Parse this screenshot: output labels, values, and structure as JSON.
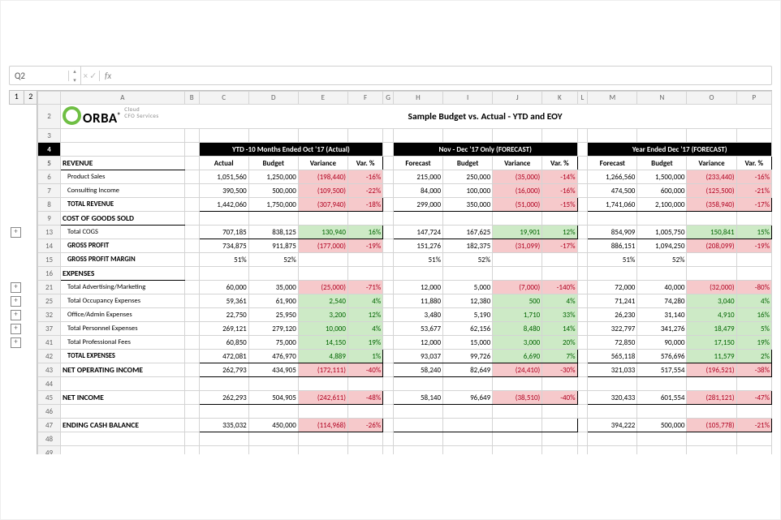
{
  "formula_bar": {
    "namebox": "Q2",
    "fx_label": "fx"
  },
  "outline_levels": [
    "1",
    "2"
  ],
  "title": "Sample Budget vs. Actual - YTD and EOY",
  "logo": {
    "text": "ORBA",
    "reg": "®",
    "sub1": "Cloud",
    "sub2": "CFO Services"
  },
  "column_letters": [
    "A",
    "B",
    "C",
    "D",
    "E",
    "F",
    "G",
    "H",
    "I",
    "J",
    "K",
    "L",
    "M",
    "N",
    "O",
    "P"
  ],
  "sections": {
    "s1": {
      "title": "YTD -10 Months Ended Oct '17 (Actual)",
      "cols": [
        "Actual",
        "Budget",
        "Variance",
        "Var. %"
      ]
    },
    "s2": {
      "title": "Nov - Dec '17 Only (FORECAST)",
      "cols": [
        "Forecast",
        "Budget",
        "Variance",
        "Var. %"
      ]
    },
    "s3": {
      "title": "Year Ended Dec '17 (FORECAST)",
      "cols": [
        "Forecast",
        "Budget",
        "Variance",
        "Var. %"
      ]
    }
  },
  "neg_color": "#f6c9cb",
  "pos_color": "#cdeac6",
  "rows": [
    {
      "rn": "2",
      "type": "logo_title"
    },
    {
      "rn": "3",
      "type": "blank"
    },
    {
      "rn": "4",
      "type": "section_hdr"
    },
    {
      "rn": "5",
      "type": "sub_hdr",
      "label": "REVENUE"
    },
    {
      "rn": "6",
      "type": "data",
      "minor": true,
      "label": "Product Sales",
      "v": [
        [
          "1,051,560",
          "1,250,000",
          "(198,440)",
          "-16%"
        ],
        [
          "215,000",
          "250,000",
          "(35,000)",
          "-14%"
        ],
        [
          "1,266,560",
          "1,500,000",
          "(233,440)",
          "-16%"
        ]
      ],
      "sgn": [
        [
          null,
          null,
          "neg",
          "neg"
        ],
        [
          null,
          null,
          "neg",
          "neg"
        ],
        [
          null,
          null,
          "neg",
          "neg"
        ]
      ]
    },
    {
      "rn": "7",
      "type": "data",
      "minor": true,
      "label": "Consulting Income",
      "v": [
        [
          "390,500",
          "500,000",
          "(109,500)",
          "-22%"
        ],
        [
          "84,000",
          "100,000",
          "(16,000)",
          "-16%"
        ],
        [
          "474,500",
          "600,000",
          "(125,500)",
          "-21%"
        ]
      ],
      "sgn": [
        [
          null,
          null,
          "neg",
          "neg"
        ],
        [
          null,
          null,
          "neg",
          "neg"
        ],
        [
          null,
          null,
          "neg",
          "neg"
        ]
      ]
    },
    {
      "rn": "8",
      "type": "data",
      "minor": true,
      "bold": true,
      "label": "TOTAL REVENUE",
      "box": true,
      "v": [
        [
          "1,442,060",
          "1,750,000",
          "(307,940)",
          "-18%"
        ],
        [
          "299,000",
          "350,000",
          "(51,000)",
          "-15%"
        ],
        [
          "1,741,060",
          "2,100,000",
          "(358,940)",
          "-17%"
        ]
      ],
      "sgn": [
        [
          null,
          null,
          "neg",
          "neg"
        ],
        [
          null,
          null,
          "neg",
          "neg"
        ],
        [
          null,
          null,
          "neg",
          "neg"
        ]
      ]
    },
    {
      "rn": "9",
      "type": "label",
      "label": "COST OF GOODS SOLD"
    },
    {
      "rn": "13",
      "type": "data",
      "minor": true,
      "label": "Total COGS",
      "plus": true,
      "box": true,
      "v": [
        [
          "707,185",
          "838,125",
          "130,940",
          "16%"
        ],
        [
          "147,724",
          "167,625",
          "19,901",
          "12%"
        ],
        [
          "854,909",
          "1,005,750",
          "150,841",
          "15%"
        ]
      ],
      "sgn": [
        [
          null,
          null,
          "pos",
          "pos"
        ],
        [
          null,
          null,
          "pos",
          "pos"
        ],
        [
          null,
          null,
          "pos",
          "pos"
        ]
      ]
    },
    {
      "rn": "14",
      "type": "data",
      "minor": true,
      "bold": true,
      "label": "GROSS PROFIT",
      "v": [
        [
          "734,875",
          "911,875",
          "(177,000)",
          "-19%"
        ],
        [
          "151,276",
          "182,375",
          "(31,099)",
          "-17%"
        ],
        [
          "886,151",
          "1,094,250",
          "(208,099)",
          "-19%"
        ]
      ],
      "sgn": [
        [
          null,
          null,
          "neg",
          "neg"
        ],
        [
          null,
          null,
          "neg",
          "neg"
        ],
        [
          null,
          null,
          "neg",
          "neg"
        ]
      ]
    },
    {
      "rn": "15",
      "type": "data",
      "minor": true,
      "bold": true,
      "label": "GROSS PROFIT MARGIN",
      "v": [
        [
          "51%",
          "52%",
          "",
          ""
        ],
        [
          "51%",
          "52%",
          "",
          ""
        ],
        [
          "51%",
          "52%",
          "",
          ""
        ]
      ],
      "sgn": [
        [
          null,
          null,
          null,
          null
        ],
        [
          null,
          null,
          null,
          null
        ],
        [
          null,
          null,
          null,
          null
        ]
      ]
    },
    {
      "rn": "16",
      "type": "label",
      "label": "EXPENSES"
    },
    {
      "rn": "21",
      "type": "data",
      "minor": true,
      "label": "Total Advertising/Marketing",
      "plus": true,
      "v": [
        [
          "60,000",
          "35,000",
          "(25,000)",
          "-71%"
        ],
        [
          "12,000",
          "5,000",
          "(7,000)",
          "-140%"
        ],
        [
          "72,000",
          "40,000",
          "(32,000)",
          "-80%"
        ]
      ],
      "sgn": [
        [
          null,
          null,
          "neg",
          "neg"
        ],
        [
          null,
          null,
          "neg",
          "neg"
        ],
        [
          null,
          null,
          "neg",
          "neg"
        ]
      ]
    },
    {
      "rn": "25",
      "type": "data",
      "minor": true,
      "label": "Total Occupancy Expenses",
      "plus": true,
      "v": [
        [
          "59,361",
          "61,900",
          "2,540",
          "4%"
        ],
        [
          "11,880",
          "12,380",
          "500",
          "4%"
        ],
        [
          "71,241",
          "74,280",
          "3,040",
          "4%"
        ]
      ],
      "sgn": [
        [
          null,
          null,
          "pos",
          "pos"
        ],
        [
          null,
          null,
          "pos",
          "pos"
        ],
        [
          null,
          null,
          "pos",
          "pos"
        ]
      ]
    },
    {
      "rn": "32",
      "type": "data",
      "minor": true,
      "label": "Office/Admin Expenses",
      "plus": true,
      "v": [
        [
          "22,750",
          "25,950",
          "3,200",
          "12%"
        ],
        [
          "3,480",
          "5,190",
          "1,710",
          "33%"
        ],
        [
          "26,230",
          "31,140",
          "4,910",
          "16%"
        ]
      ],
      "sgn": [
        [
          null,
          null,
          "pos",
          "pos"
        ],
        [
          null,
          null,
          "pos",
          "pos"
        ],
        [
          null,
          null,
          "pos",
          "pos"
        ]
      ]
    },
    {
      "rn": "37",
      "type": "data",
      "minor": true,
      "label": "Total Personnel Expenses",
      "plus": true,
      "v": [
        [
          "269,121",
          "279,120",
          "10,000",
          "4%"
        ],
        [
          "53,677",
          "62,156",
          "8,480",
          "14%"
        ],
        [
          "322,797",
          "341,276",
          "18,479",
          "5%"
        ]
      ],
      "sgn": [
        [
          null,
          null,
          "pos",
          "pos"
        ],
        [
          null,
          null,
          "pos",
          "pos"
        ],
        [
          null,
          null,
          "pos",
          "pos"
        ]
      ]
    },
    {
      "rn": "41",
      "type": "data",
      "minor": true,
      "label": "Total Professional Fees",
      "plus": true,
      "v": [
        [
          "60,850",
          "75,000",
          "14,150",
          "19%"
        ],
        [
          "12,000",
          "15,000",
          "3,000",
          "20%"
        ],
        [
          "72,850",
          "90,000",
          "17,150",
          "19%"
        ]
      ],
      "sgn": [
        [
          null,
          null,
          "pos",
          "pos"
        ],
        [
          null,
          null,
          "pos",
          "pos"
        ],
        [
          null,
          null,
          "pos",
          "pos"
        ]
      ]
    },
    {
      "rn": "42",
      "type": "data",
      "minor": true,
      "bold": true,
      "label": "TOTAL EXPENSES",
      "box": true,
      "v": [
        [
          "472,081",
          "476,970",
          "4,889",
          "1%"
        ],
        [
          "93,037",
          "99,726",
          "6,690",
          "7%"
        ],
        [
          "565,118",
          "576,696",
          "11,579",
          "2%"
        ]
      ],
      "sgn": [
        [
          null,
          null,
          "pos",
          "pos"
        ],
        [
          null,
          null,
          "pos",
          "pos"
        ],
        [
          null,
          null,
          "pos",
          "pos"
        ]
      ]
    },
    {
      "rn": "43",
      "type": "data",
      "label": "NET OPERATING INCOME",
      "box": true,
      "v": [
        [
          "262,793",
          "434,905",
          "(172,111)",
          "-40%"
        ],
        [
          "58,240",
          "82,649",
          "(24,410)",
          "-30%"
        ],
        [
          "321,033",
          "517,554",
          "(196,521)",
          "-38%"
        ]
      ],
      "sgn": [
        [
          null,
          null,
          "neg",
          "neg"
        ],
        [
          null,
          null,
          "neg",
          "neg"
        ],
        [
          null,
          null,
          "neg",
          "neg"
        ]
      ]
    },
    {
      "rn": "44",
      "type": "blank"
    },
    {
      "rn": "45",
      "type": "data",
      "label": "NET INCOME",
      "box": true,
      "v": [
        [
          "262,293",
          "504,905",
          "(242,611)",
          "-48%"
        ],
        [
          "58,140",
          "96,649",
          "(38,510)",
          "-40%"
        ],
        [
          "320,433",
          "601,554",
          "(281,121)",
          "-47%"
        ]
      ],
      "sgn": [
        [
          null,
          null,
          "neg",
          "neg"
        ],
        [
          null,
          null,
          "neg",
          "neg"
        ],
        [
          null,
          null,
          "neg",
          "neg"
        ]
      ]
    },
    {
      "rn": "46",
      "type": "blank"
    },
    {
      "rn": "47",
      "type": "data",
      "label": "ENDING CASH BALANCE",
      "box": true,
      "v": [
        [
          "335,032",
          "450,000",
          "(114,968)",
          "-26%"
        ],
        [
          "",
          "",
          "",
          ""
        ],
        [
          "394,222",
          "500,000",
          "(105,778)",
          "-21%"
        ]
      ],
      "sgn": [
        [
          null,
          null,
          "neg",
          "neg"
        ],
        [
          null,
          null,
          null,
          null
        ],
        [
          null,
          null,
          "neg",
          "neg"
        ]
      ]
    },
    {
      "rn": "48",
      "type": "blank"
    },
    {
      "rn": "49",
      "type": "blank"
    }
  ]
}
